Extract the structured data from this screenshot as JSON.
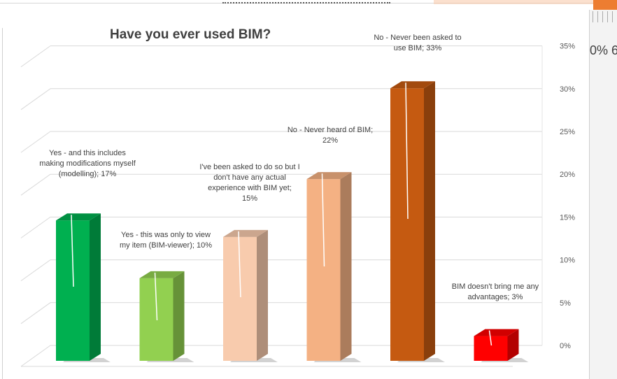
{
  "right_panel_fragment": "0% 6",
  "chart_data": {
    "type": "bar",
    "title": "Have you ever used BIM?",
    "xlabel": "",
    "ylabel": "",
    "ylim": [
      0,
      35
    ],
    "yticks": [
      "0%",
      "5%",
      "10%",
      "15%",
      "20%",
      "25%",
      "30%",
      "35%"
    ],
    "grid": true,
    "legend": "none",
    "categories": [
      "Yes - and this includes making modifications myself (modelling)",
      "Yes - this was only to view my item (BIM-viewer)",
      "I've been asked to do so but I don't have any actual experience with BIM yet",
      "No - Never heard of BIM",
      "No - Never been asked to use BIM",
      "BIM doesn't bring me any advantages"
    ],
    "values": [
      17,
      10,
      15,
      22,
      33,
      3
    ],
    "data_labels": [
      [
        "Yes - and this includes",
        "making modifications myself",
        "(modelling); 17%"
      ],
      [
        "Yes - this was only to view",
        "my item (BIM-viewer); 10%"
      ],
      [
        "I've been asked to do so but I",
        "don't have any actual",
        "experience with BIM yet;",
        "15%"
      ],
      [
        "No - Never heard of BIM;",
        "22%"
      ],
      [
        "No - Never been asked to",
        "use BIM; 33%"
      ],
      [
        "BIM doesn't bring me any",
        "advantages; 3%"
      ]
    ],
    "colors": [
      "#00b050",
      "#92d050",
      "#f8cbad",
      "#f4b183",
      "#c55a11",
      "#ff0000"
    ]
  }
}
